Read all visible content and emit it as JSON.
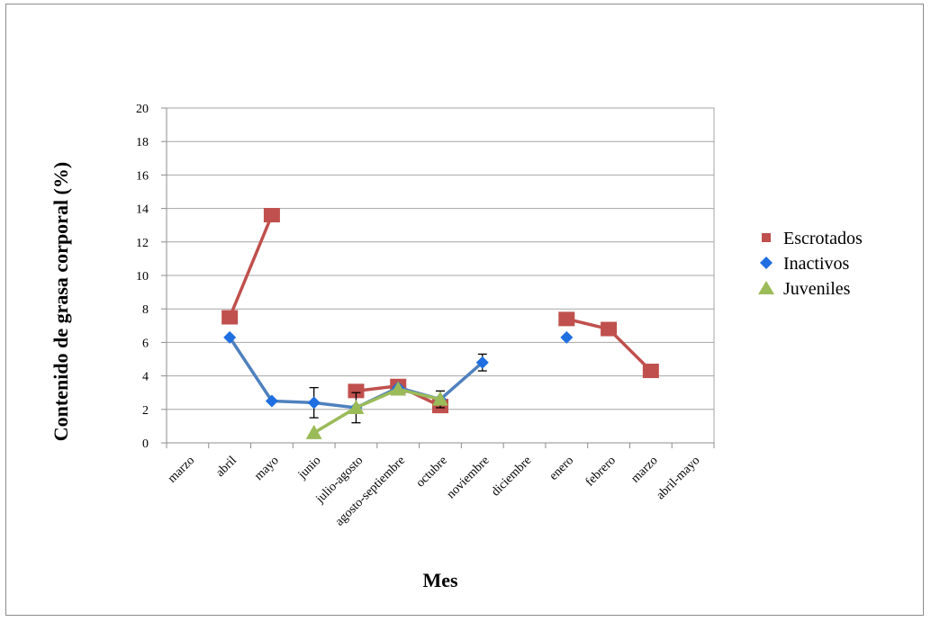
{
  "chart_data": {
    "type": "line",
    "title": "",
    "xlabel": "Mes",
    "ylabel": "Contenido de grasa corporal (%)",
    "ylim": [
      0,
      20
    ],
    "yticks": [
      0,
      2,
      4,
      6,
      8,
      10,
      12,
      14,
      16,
      18,
      20
    ],
    "grid": true,
    "legend_position": "right",
    "categories": [
      "marzo",
      "abril",
      "mayo",
      "junio",
      "julio-agosto",
      "agosto-septiembre",
      "octubre",
      "noviembre",
      "diciembre",
      "enero",
      "febrero",
      "marzo",
      "abril-mayo"
    ],
    "series": [
      {
        "name": "Escrotados",
        "color": "#c0504d",
        "marker": "square",
        "values": [
          null,
          7.5,
          13.6,
          null,
          3.1,
          3.4,
          2.2,
          null,
          null,
          7.4,
          6.8,
          4.3,
          null
        ],
        "errors": [
          null,
          null,
          null,
          null,
          null,
          null,
          0.3,
          null,
          null,
          null,
          null,
          null,
          null
        ]
      },
      {
        "name": "Inactivos",
        "color": "#4f81bd",
        "marker_color": "#1f6fe0",
        "marker": "diamond",
        "values": [
          null,
          6.3,
          2.5,
          2.4,
          2.1,
          3.3,
          2.6,
          4.8,
          null,
          6.3,
          null,
          null,
          null
        ],
        "errors": [
          null,
          null,
          null,
          0.9,
          0.9,
          null,
          0.5,
          0.5,
          null,
          null,
          null,
          null,
          null
        ]
      },
      {
        "name": "Juveniles",
        "color": "#9bbb59",
        "marker": "triangle",
        "values": [
          null,
          null,
          null,
          0.6,
          2.1,
          3.2,
          2.6,
          null,
          null,
          null,
          null,
          null,
          null
        ],
        "errors": [
          null,
          null,
          null,
          null,
          null,
          null,
          null,
          null,
          null,
          null,
          null,
          null,
          null
        ]
      }
    ]
  }
}
